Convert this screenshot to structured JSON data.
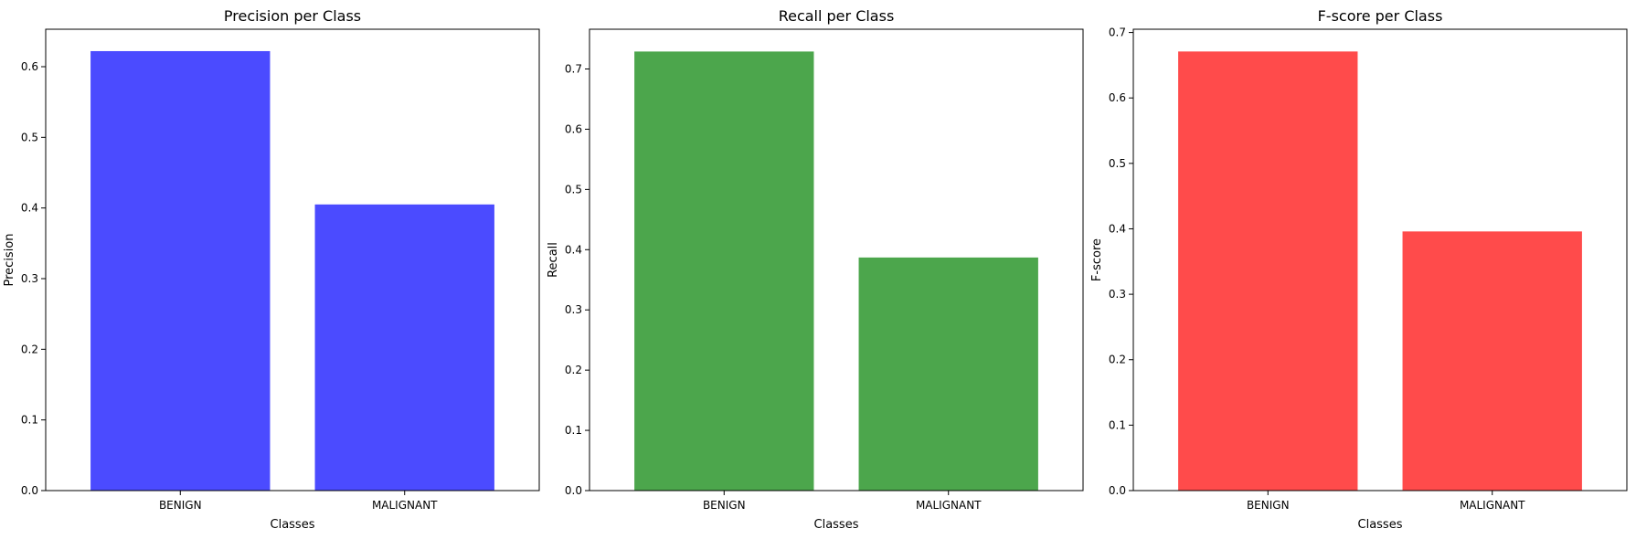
{
  "chart_data": [
    {
      "type": "bar",
      "title": "Precision per Class",
      "xlabel": "Classes",
      "ylabel": "Precision",
      "categories": [
        "BENIGN",
        "MALIGNANT"
      ],
      "values": [
        0.622,
        0.405
      ],
      "ylim": [
        0,
        0.653
      ],
      "yticks": [
        0.0,
        0.1,
        0.2,
        0.3,
        0.4,
        0.5,
        0.6
      ],
      "ytick_labels": [
        "0.0",
        "0.1",
        "0.2",
        "0.3",
        "0.4",
        "0.5",
        "0.6"
      ],
      "color": "#4b4bff",
      "grid": false
    },
    {
      "type": "bar",
      "title": "Recall per Class",
      "xlabel": "Classes",
      "ylabel": "Recall",
      "categories": [
        "BENIGN",
        "MALIGNANT"
      ],
      "values": [
        0.729,
        0.387
      ],
      "ylim": [
        0,
        0.766
      ],
      "yticks": [
        0.0,
        0.1,
        0.2,
        0.3,
        0.4,
        0.5,
        0.6,
        0.7
      ],
      "ytick_labels": [
        "0.0",
        "0.1",
        "0.2",
        "0.3",
        "0.4",
        "0.5",
        "0.6",
        "0.7"
      ],
      "color": "#4ca64c",
      "grid": false
    },
    {
      "type": "bar",
      "title": "F-score per Class",
      "xlabel": "Classes",
      "ylabel": "F-score",
      "categories": [
        "BENIGN",
        "MALIGNANT"
      ],
      "values": [
        0.671,
        0.396
      ],
      "ylim": [
        0,
        0.705
      ],
      "yticks": [
        0.0,
        0.1,
        0.2,
        0.3,
        0.4,
        0.5,
        0.6,
        0.7
      ],
      "ytick_labels": [
        "0.0",
        "0.1",
        "0.2",
        "0.3",
        "0.4",
        "0.5",
        "0.6",
        "0.7"
      ],
      "color": "#ff4b4b",
      "grid": false
    }
  ]
}
